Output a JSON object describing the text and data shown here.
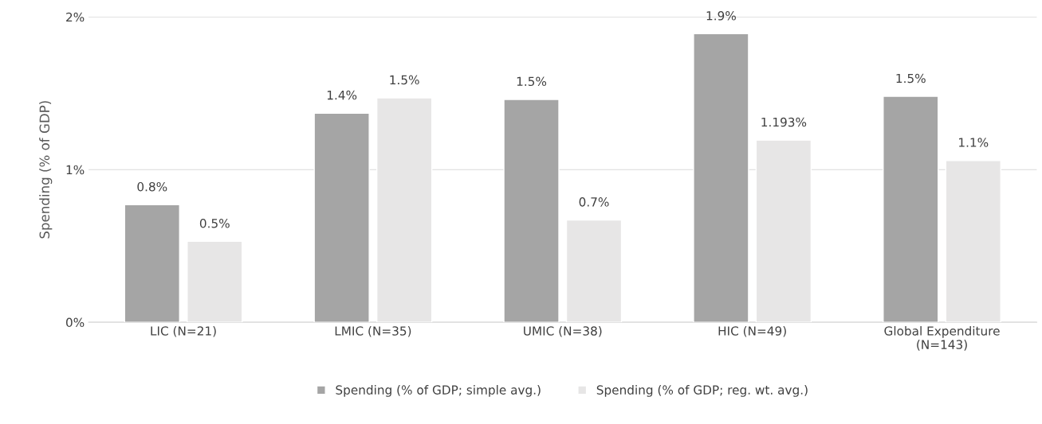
{
  "chart_data": {
    "type": "bar",
    "ylabel": "Spending (% of GDP)",
    "categories": [
      "LIC (N=21)",
      "LMIC (N=35)",
      "UMIC (N=38)",
      "HIC (N=49)",
      "Global Expenditure\n(N=143)"
    ],
    "series": [
      {
        "name": "Spending (% of GDP; simple avg.)",
        "color": "#a5a5a5",
        "values": [
          0.77,
          1.37,
          1.46,
          1.89,
          1.48
        ],
        "value_labels": [
          "0.8%",
          "1.4%",
          "1.5%",
          "1.9%",
          "1.5%"
        ]
      },
      {
        "name": "Spending (% of GDP; reg. wt. avg.)",
        "color": "#e7e6e6",
        "values": [
          0.53,
          1.47,
          0.67,
          1.193,
          1.06
        ],
        "value_labels": [
          "0.5%",
          "1.5%",
          "0.7%",
          "1.193%",
          "1.1%"
        ]
      }
    ],
    "ylim": [
      0,
      2
    ],
    "yticks": [
      {
        "value": 0,
        "label": "0%"
      },
      {
        "value": 1,
        "label": "1%"
      },
      {
        "value": 2,
        "label": "2%"
      }
    ],
    "grid": "y",
    "legend": "bottom"
  }
}
